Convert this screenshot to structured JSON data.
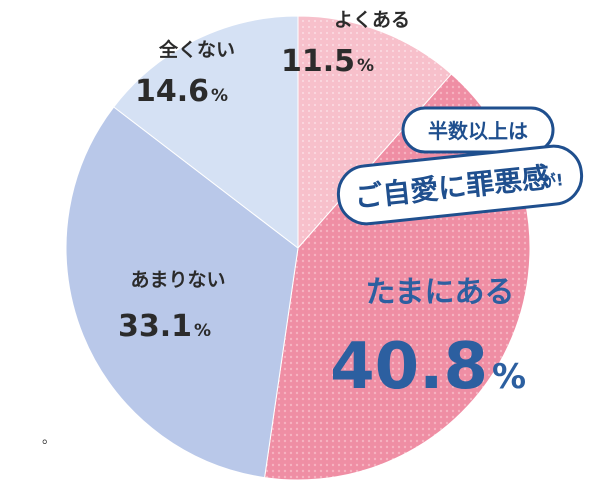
{
  "chart_data": {
    "type": "pie",
    "categories": [
      "よくある",
      "たまにある",
      "あまりない",
      "全くない"
    ],
    "values": [
      11.5,
      40.8,
      33.1,
      14.6
    ],
    "unit": "%",
    "title": "",
    "legend": "none",
    "annotations": [
      {
        "text_line1": "半数以上は",
        "text_line2_main": "ご自愛に罪悪感",
        "text_line2_suffix": "が!"
      }
    ]
  },
  "colors": {
    "yokuaru": "#f5b6c2",
    "tamaniaru": "#ef8ea4",
    "amarinai": "#b9c8e9",
    "mattakunai": "#d5e1f4",
    "callout_border": "#1f4f8e",
    "emphasis_text": "#2c5fa0"
  },
  "footnote_mark": "。"
}
